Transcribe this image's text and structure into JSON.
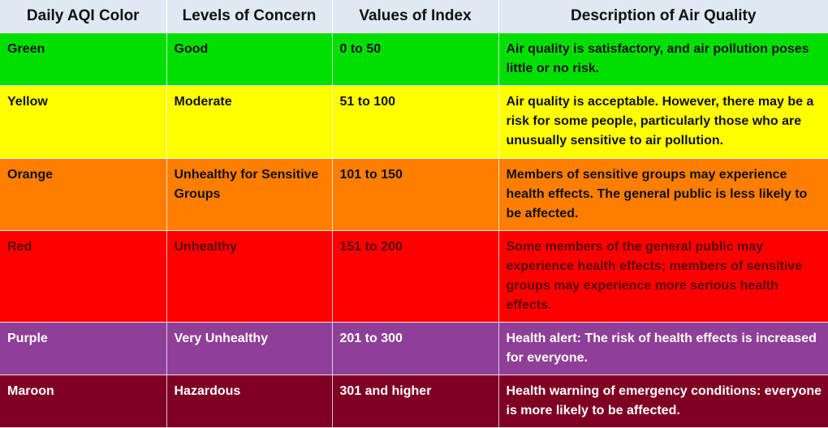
{
  "table": {
    "headers": [
      "Daily AQI Color",
      "Levels of Concern",
      "Values of Index",
      "Description of Air Quality"
    ],
    "rows": [
      {
        "color": "Green",
        "level": "Good",
        "values": "0 to 50",
        "description": "Air quality is satisfactory, and air pollution poses little or no risk.",
        "bg": "#00e000"
      },
      {
        "color": "Yellow",
        "level": "Moderate",
        "values": "51 to 100",
        "description": "Air quality is acceptable. However, there may be a risk for some people, particularly those who are unusually sensitive to air pollution.",
        "bg": "#ffff00"
      },
      {
        "color": "Orange",
        "level": "Unhealthy for Sensitive Groups",
        "values": "101 to 150",
        "description": "Members of sensitive groups may experience health effects. The general public is less likely to be affected.",
        "bg": "#ff7e00"
      },
      {
        "color": "Red",
        "level": "Unhealthy",
        "values": "151 to 200",
        "description": "Some members of the general public may experience health effects; members of sensitive groups may experience more serious health effects.",
        "bg": "#ff0000"
      },
      {
        "color": "Purple",
        "level": "Very Unhealthy",
        "values": "201 to 300",
        "description": "Health alert: The risk of health effects is increased for everyone.",
        "bg": "#8f3f97"
      },
      {
        "color": "Maroon",
        "level": "Hazardous",
        "values": "301 and higher",
        "description": "Health warning of emergency conditions: everyone is more likely to be affected.",
        "bg": "#7e0023"
      }
    ]
  }
}
